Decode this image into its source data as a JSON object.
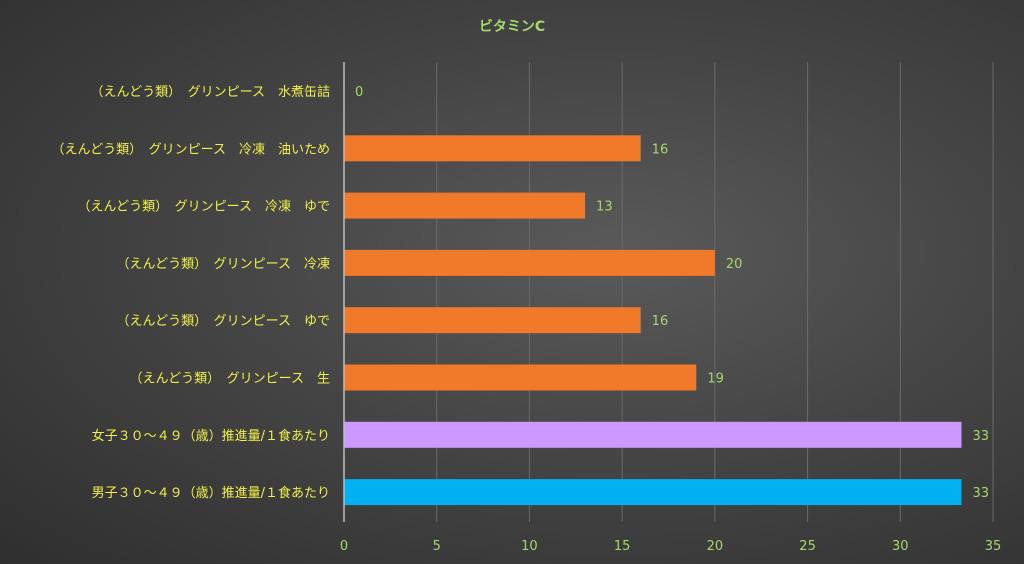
{
  "chart_data": {
    "type": "bar",
    "orientation": "horizontal",
    "title": "ビタミンC",
    "categories": [
      "（えんどう類）　グリンピース　水煮缶詰",
      "（えんどう類）　グリンピース　冷凍　油いため",
      "（えんどう類）　グリンピース　冷凍　ゆで",
      "（えんどう類）　グリンピース　冷凍",
      "（えんどう類）　グリンピース　ゆで",
      "（えんどう類）　グリンピース　生",
      "女子３０～４９（歳）推進量/１食あたり",
      "男子３０～４９（歳）推進量/１食あたり"
    ],
    "values": [
      0,
      16,
      13,
      20,
      16,
      19,
      33.3,
      33.3
    ],
    "value_labels": [
      "0",
      "16",
      "13",
      "20",
      "16",
      "19",
      "33",
      "33"
    ],
    "bar_colors": [
      "#f07a2a",
      "#f07a2a",
      "#f07a2a",
      "#f07a2a",
      "#f07a2a",
      "#f07a2a",
      "#cc99ff",
      "#00b0f0"
    ],
    "xlim": [
      0,
      35
    ],
    "xticks": [
      0,
      5,
      10,
      15,
      20,
      25,
      30,
      35
    ],
    "grid": true,
    "legend": "none",
    "xlabel": "",
    "ylabel": ""
  }
}
